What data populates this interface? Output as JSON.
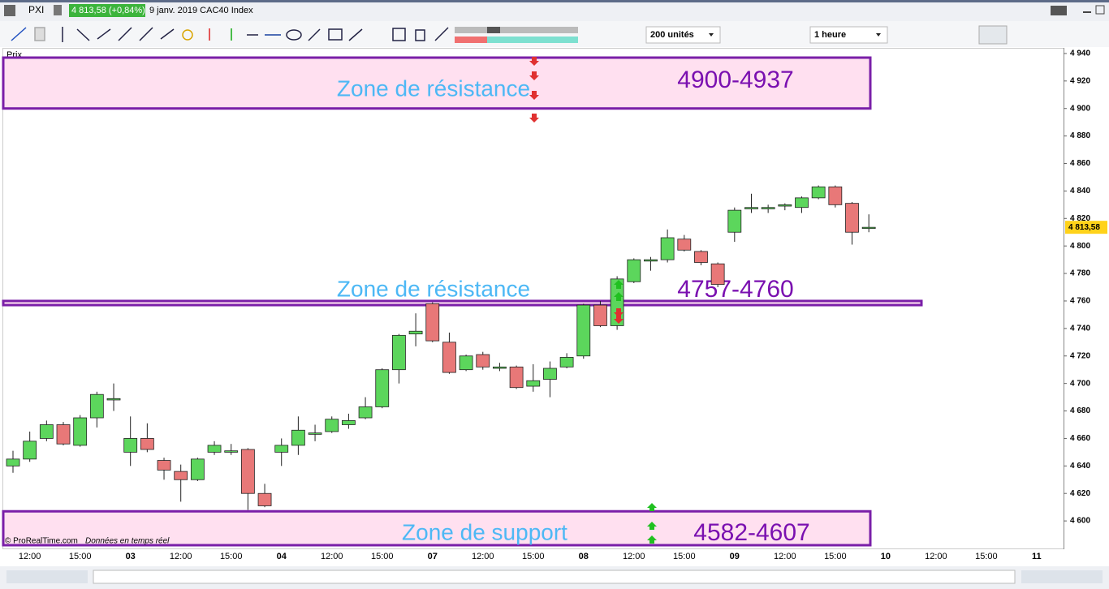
{
  "header": {
    "symbol": "PXI",
    "quote": "4 813,58 (+0,84%)",
    "description": "9 janv. 2019 CAC40 Index",
    "units": "200 unités",
    "period": "1 heure",
    "panel": "Prix"
  },
  "footer": {
    "copyright": "© ProRealTime.com",
    "note": "Données en temps réel"
  },
  "chart_data": {
    "type": "candlestick",
    "categories": [
      null,
      "12:00",
      null,
      null,
      "15:00",
      null,
      null,
      "03",
      null,
      null,
      "12:00",
      null,
      null,
      "15:00",
      null,
      null,
      "04",
      null,
      null,
      "12:00",
      null,
      null,
      "15:00",
      null,
      null,
      "07",
      null,
      null,
      "12:00",
      null,
      null,
      "15:00",
      null,
      null,
      "08",
      null,
      null,
      "12:00",
      null,
      null,
      "15:00",
      null,
      null,
      "09",
      null,
      null,
      "12:00",
      null,
      null,
      "15:00",
      null,
      null,
      "10",
      null,
      null,
      "12:00",
      null,
      null,
      "15:00",
      null,
      null,
      "11"
    ],
    "open": [
      4640,
      4645,
      4660,
      4670,
      4655,
      4675,
      4688,
      4650,
      4660,
      4644,
      4636,
      4630,
      4650,
      4650,
      4652,
      4620,
      4650,
      4655,
      4663,
      4665,
      4670,
      4675,
      4683,
      4710,
      4736,
      4758,
      4730,
      4710,
      4721,
      4711,
      4712,
      4698,
      4703,
      4712,
      4720,
      4757,
      4742,
      4774,
      4789,
      4790,
      4805,
      4796,
      4787,
      4810,
      4827,
      4827,
      4829,
      4828,
      4835,
      4843,
      4831,
      4813,
      null,
      null,
      null,
      null,
      null,
      null,
      null,
      null,
      null,
      null
    ],
    "high": [
      4651,
      4665,
      4673,
      4672,
      4677,
      4694,
      4700,
      4676,
      4671,
      4646,
      4641,
      4646,
      4658,
      4656,
      4653,
      4627,
      4660,
      4676,
      4670,
      4676,
      4678,
      4690,
      4711,
      4736,
      4751,
      4759,
      4737,
      4721,
      4723,
      4715,
      4713,
      4714,
      4716,
      4722,
      4758,
      4760,
      4778,
      4791,
      4792,
      4812,
      4808,
      4797,
      4788,
      4828,
      4838,
      4830,
      4831,
      4836,
      4844,
      4844,
      4832,
      4823,
      null,
      null,
      null,
      null,
      null,
      null,
      null,
      null,
      null,
      null
    ],
    "low": [
      4635,
      4643,
      4658,
      4655,
      4654,
      4668,
      4680,
      4640,
      4650,
      4630,
      4614,
      4629,
      4648,
      4648,
      4608,
      4610,
      4640,
      4648,
      4658,
      4664,
      4667,
      4674,
      4682,
      4700,
      4727,
      4730,
      4707,
      4709,
      4710,
      4709,
      4696,
      4694,
      4690,
      4711,
      4718,
      4741,
      4739,
      4773,
      4782,
      4788,
      4796,
      4786,
      4770,
      4803,
      4824,
      4824,
      4826,
      4824,
      4834,
      4828,
      4801,
      4810,
      null,
      null,
      null,
      null,
      null,
      null,
      null,
      null,
      null,
      null
    ],
    "close": [
      4645,
      4658,
      4670,
      4656,
      4675,
      4692,
      4689,
      4660,
      4652,
      4637,
      4630,
      4645,
      4655,
      4651,
      4620,
      4611,
      4655,
      4666,
      4664,
      4674,
      4673,
      4683,
      4710,
      4735,
      4738,
      4731,
      4708,
      4720,
      4712,
      4712,
      4697,
      4702,
      4711,
      4719,
      4757,
      4742,
      4776,
      4790,
      4790,
      4806,
      4797,
      4788,
      4772,
      4826,
      4828,
      4828,
      4830,
      4835,
      4843,
      4830,
      4810,
      4813.58,
      null,
      null,
      null,
      null,
      null,
      null,
      null,
      null,
      null,
      null
    ],
    "up_color": "#5cd65c",
    "down_color": "#e87878",
    "last_price": {
      "value": 4813.58,
      "label": "4 813,58"
    },
    "ylim": [
      4580,
      4943.5
    ],
    "yticks": [
      {
        "value": 4940,
        "label": "4 940"
      },
      {
        "value": 4920,
        "label": "4 920"
      },
      {
        "value": 4900,
        "label": "4 900"
      },
      {
        "value": 4880,
        "label": "4 880"
      },
      {
        "value": 4860,
        "label": "4 860"
      },
      {
        "value": 4840,
        "label": "4 840"
      },
      {
        "value": 4820,
        "label": "4 820"
      },
      {
        "value": 4800,
        "label": "4 800"
      },
      {
        "value": 4780,
        "label": "4 780"
      },
      {
        "value": 4760,
        "label": "4 760"
      },
      {
        "value": 4740,
        "label": "4 740"
      },
      {
        "value": 4720,
        "label": "4 720"
      },
      {
        "value": 4700,
        "label": "4 700"
      },
      {
        "value": 4680,
        "label": "4 680"
      },
      {
        "value": 4660,
        "label": "4 660"
      },
      {
        "value": 4640,
        "label": "4 640"
      },
      {
        "value": 4620,
        "label": "4 620"
      },
      {
        "value": 4600,
        "label": "4 600"
      }
    ],
    "zones": [
      {
        "label": "Zone de résistance",
        "range_label": "4900-4937",
        "low": 4900,
        "high": 4937
      },
      {
        "label": "Zone de résistance",
        "range_label": "4757-4760",
        "low": 4757,
        "high": 4760
      },
      {
        "label": "Zone de support",
        "range_label": "4582-4607",
        "low": 4582,
        "high": 4607
      }
    ],
    "zone_fill": "#ffe0f0",
    "zone_border": "#7a1fa8",
    "zone_text_color": "#4db8f5",
    "zone_range_color": "#7a10b0"
  }
}
